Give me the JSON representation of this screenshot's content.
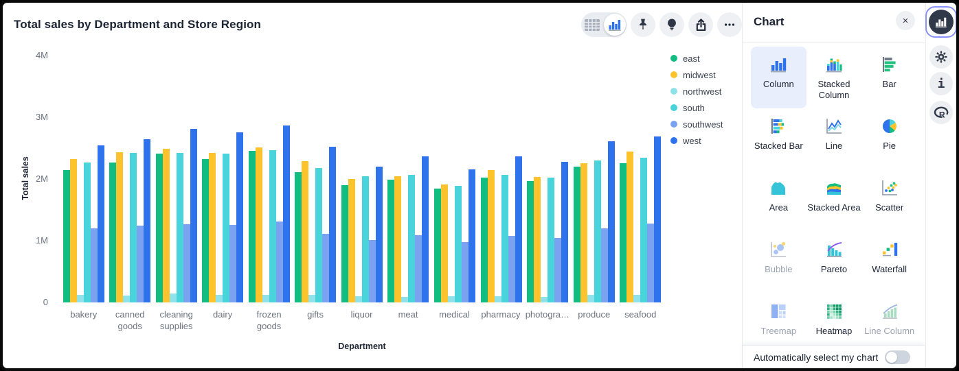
{
  "header": {
    "title": "Total sales by Department and Store Region"
  },
  "toolbar": {
    "view_toggle": {
      "options": [
        "table-view",
        "chart-view"
      ],
      "selected": "chart-view"
    },
    "buttons": [
      "pin",
      "lightbulb",
      "share",
      "more"
    ]
  },
  "chart_data": {
    "type": "bar",
    "title": "Total sales by Department and Store Region",
    "xlabel": "Department",
    "ylabel": "Total sales",
    "value_unit": "millions",
    "ylim": [
      0,
      4000000
    ],
    "ytick_labels": [
      "4M",
      "3M",
      "2M",
      "1M",
      "0"
    ],
    "grid": false,
    "legend_position": "right",
    "categories": [
      "bakery",
      "canned goods",
      "cleaning supplies",
      "dairy",
      "frozen goods",
      "gifts",
      "liquor",
      "meat",
      "medical",
      "pharmacy",
      "photogra…",
      "produce",
      "seafood"
    ],
    "series": [
      {
        "name": "east",
        "color": "#11bd80",
        "values_millions": [
          2.14,
          2.27,
          2.41,
          2.32,
          2.46,
          2.11,
          1.9,
          1.99,
          1.84,
          2.02,
          1.97,
          2.2,
          2.26
        ]
      },
      {
        "name": "midwest",
        "color": "#fcc32d",
        "values_millions": [
          2.32,
          2.43,
          2.49,
          2.42,
          2.51,
          2.29,
          2.0,
          2.05,
          1.91,
          2.14,
          2.03,
          2.25,
          2.44
        ]
      },
      {
        "name": "northwest",
        "color": "#90e2ea",
        "values_millions": [
          0.12,
          0.11,
          0.14,
          0.12,
          0.12,
          0.12,
          0.1,
          0.09,
          0.1,
          0.1,
          0.09,
          0.12,
          0.12
        ]
      },
      {
        "name": "south",
        "color": "#49d3da",
        "values_millions": [
          2.27,
          2.42,
          2.42,
          2.41,
          2.47,
          2.18,
          2.05,
          2.07,
          1.89,
          2.07,
          2.02,
          2.3,
          2.34
        ]
      },
      {
        "name": "southwest",
        "color": "#7ba1f1",
        "values_millions": [
          1.2,
          1.24,
          1.27,
          1.26,
          1.31,
          1.11,
          1.01,
          1.09,
          0.98,
          1.08,
          1.04,
          1.2,
          1.28
        ]
      },
      {
        "name": "west",
        "color": "#2e72ec",
        "values_millions": [
          2.55,
          2.64,
          2.81,
          2.76,
          2.87,
          2.52,
          2.2,
          2.37,
          2.16,
          2.37,
          2.28,
          2.61,
          2.69
        ]
      }
    ]
  },
  "panel": {
    "title": "Chart",
    "close_label": "×",
    "chart_types": [
      {
        "label": "Column",
        "icon": "column",
        "selected": true,
        "disabled": false
      },
      {
        "label": "Stacked Column",
        "icon": "stacked-column",
        "selected": false,
        "disabled": false
      },
      {
        "label": "Bar",
        "icon": "bar",
        "selected": false,
        "disabled": false
      },
      {
        "label": "Stacked Bar",
        "icon": "stacked-bar",
        "selected": false,
        "disabled": false
      },
      {
        "label": "Line",
        "icon": "line",
        "selected": false,
        "disabled": false
      },
      {
        "label": "Pie",
        "icon": "pie",
        "selected": false,
        "disabled": false
      },
      {
        "label": "Area",
        "icon": "area",
        "selected": false,
        "disabled": false
      },
      {
        "label": "Stacked Area",
        "icon": "stacked-area",
        "selected": false,
        "disabled": false
      },
      {
        "label": "Scatter",
        "icon": "scatter",
        "selected": false,
        "disabled": false
      },
      {
        "label": "Bubble",
        "icon": "bubble",
        "selected": false,
        "disabled": true
      },
      {
        "label": "Pareto",
        "icon": "pareto",
        "selected": false,
        "disabled": false
      },
      {
        "label": "Waterfall",
        "icon": "waterfall",
        "selected": false,
        "disabled": false
      },
      {
        "label": "Treemap",
        "icon": "treemap",
        "selected": false,
        "disabled": true
      },
      {
        "label": "Heatmap",
        "icon": "heatmap",
        "selected": false,
        "disabled": false
      },
      {
        "label": "Line Column",
        "icon": "line-column",
        "selected": false,
        "disabled": true
      }
    ],
    "footer": {
      "label": "Automatically select my chart",
      "toggle_on": false
    }
  },
  "rail": {
    "items": [
      "chart",
      "settings",
      "info",
      "r-language"
    ],
    "selected": "chart"
  }
}
